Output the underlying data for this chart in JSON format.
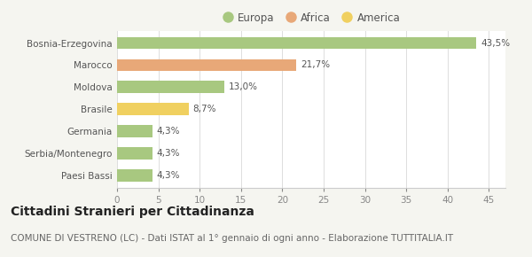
{
  "categories": [
    "Bosnia-Erzegovina",
    "Marocco",
    "Moldova",
    "Brasile",
    "Germania",
    "Serbia/Montenegro",
    "Paesi Bassi"
  ],
  "values": [
    43.5,
    21.7,
    13.0,
    8.7,
    4.3,
    4.3,
    4.3
  ],
  "labels": [
    "43,5%",
    "21,7%",
    "13,0%",
    "8,7%",
    "4,3%",
    "4,3%",
    "4,3%"
  ],
  "colors": [
    "#a8c880",
    "#e8a878",
    "#a8c880",
    "#f0d060",
    "#a8c880",
    "#a8c880",
    "#a8c880"
  ],
  "legend_items": [
    {
      "label": "Europa",
      "color": "#a8c880"
    },
    {
      "label": "Africa",
      "color": "#e8a878"
    },
    {
      "label": "America",
      "color": "#f0d060"
    }
  ],
  "xlim": [
    0,
    47
  ],
  "xticks": [
    0,
    5,
    10,
    15,
    20,
    25,
    30,
    35,
    40,
    45
  ],
  "title": "Cittadini Stranieri per Cittadinanza",
  "subtitle": "COMUNE DI VESTRENO (LC) - Dati ISTAT al 1° gennaio di ogni anno - Elaborazione TUTTITALIA.IT",
  "background_color": "#f5f5f0",
  "plot_bg_color": "#ffffff",
  "title_fontsize": 10,
  "subtitle_fontsize": 7.5,
  "bar_height": 0.55
}
